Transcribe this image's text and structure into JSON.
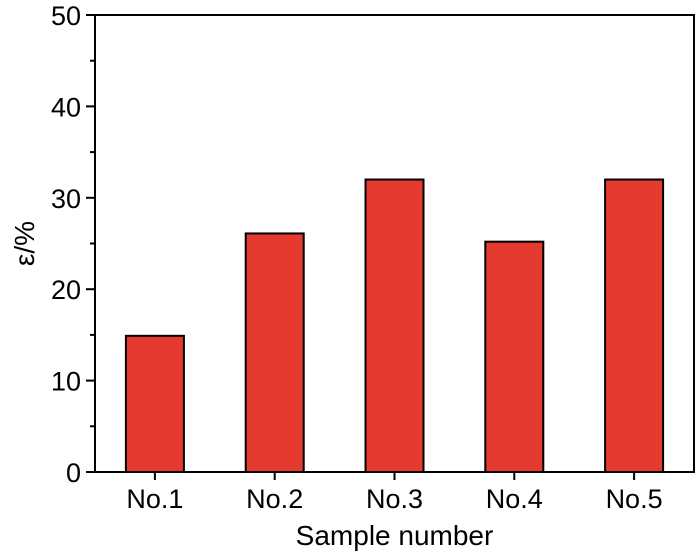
{
  "chart_data": {
    "type": "bar",
    "categories": [
      "No.1",
      "No.2",
      "No.3",
      "No.4",
      "No.5"
    ],
    "values": [
      14.9,
      26.1,
      32.0,
      25.2,
      32.0
    ],
    "xlabel": "Sample number",
    "ylabel": "ε/%",
    "ylim": [
      0,
      50
    ],
    "yticks": [
      0,
      10,
      20,
      30,
      40,
      50
    ],
    "grid": false,
    "bar_color": "#E53A30",
    "edge_color": "#000000"
  }
}
